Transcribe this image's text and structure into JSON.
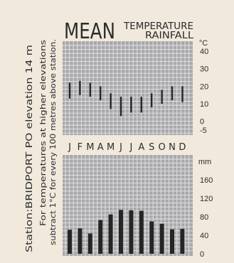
{
  "header": {
    "title": "MEAN",
    "subtitle_temp": "TEMPERATURE",
    "subtitle_rain": "RAINFALL"
  },
  "side_text": {
    "station": "Station:BRIDPORT PO elevation 14 m",
    "note_line1": "For temperatures at higher elevations",
    "note_line2": "subtract 1°C for every 100 metres above station."
  },
  "colors": {
    "background": "#f1e9dc",
    "panel": "#a9a9ab",
    "grid": "#e6e4e6",
    "ink": "#252525"
  },
  "chart_data": [
    {
      "type": "range",
      "title": "TEMPERATURE",
      "ylabel": "°C",
      "ylim": [
        -5,
        40
      ],
      "yticks": [
        40,
        30,
        20,
        10,
        0,
        -5
      ],
      "grid": true,
      "categories": [
        "J",
        "F",
        "M",
        "A",
        "M",
        "J",
        "J",
        "A",
        "S",
        "O",
        "N",
        "D"
      ],
      "series": [
        {
          "values_low": [
            13,
            15,
            14,
            12,
            7,
            3,
            5,
            5,
            8,
            10,
            12,
            11
          ],
          "values_high": [
            22,
            23,
            22,
            20,
            16,
            14,
            14,
            14,
            16,
            18,
            20,
            20
          ]
        }
      ]
    },
    {
      "type": "bar",
      "title": "RAINFALL",
      "ylabel": "mm",
      "ylim": [
        0,
        200
      ],
      "yticks": [
        160,
        120,
        80,
        40,
        0
      ],
      "grid": true,
      "categories": [
        "J",
        "F",
        "M",
        "A",
        "M",
        "J",
        "J",
        "A",
        "S",
        "O",
        "N",
        "D"
      ],
      "values": [
        52,
        55,
        44,
        73,
        85,
        95,
        94,
        93,
        70,
        65,
        53,
        54
      ]
    }
  ]
}
